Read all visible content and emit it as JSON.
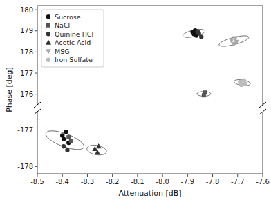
{
  "chart_data": [
    {
      "type": "scatter",
      "ylabel": "Phase [deg]",
      "xlim": [
        -8.5,
        -7.6
      ],
      "ylim": [
        175.5,
        180.2
      ],
      "yticks": [
        176,
        177,
        178,
        179,
        180
      ],
      "tick_labels": "y",
      "grid": false,
      "legend": "upper left",
      "series": [
        {
          "name": "Sucrose",
          "color": "#111111",
          "marker": "circle",
          "x": [
            -7.88,
            -7.875,
            -7.87,
            -7.865
          ],
          "values": [
            178.95,
            178.85,
            179.02,
            178.78
          ]
        },
        {
          "name": "NaCl",
          "color": "#555555",
          "marker": "square",
          "x": [
            -7.835,
            -7.83
          ],
          "values": [
            175.95,
            176.08
          ]
        },
        {
          "name": "Quinine HCl",
          "color": "#333333",
          "marker": "circle",
          "x": [
            -7.855,
            -7.845,
            -7.86
          ],
          "values": [
            178.88,
            178.72,
            178.98
          ]
        },
        {
          "name": "Acetic Acid",
          "color": "#333333",
          "marker": "triangle-up",
          "x": [],
          "values": []
        },
        {
          "name": "MSG",
          "color": "#aaaaaa",
          "marker": "triangle-down",
          "x": [
            -7.725,
            -7.715,
            -7.71,
            -7.705
          ],
          "values": [
            178.55,
            178.38,
            178.65,
            178.48
          ]
        },
        {
          "name": "Iron Sulfate",
          "color": "#bbbbbb",
          "marker": "circle",
          "x": [
            -7.69,
            -7.685,
            -7.675,
            -7.67
          ],
          "values": [
            176.58,
            176.45,
            176.65,
            176.5
          ]
        }
      ],
      "ellipses": [
        {
          "cx": -7.875,
          "cy": 178.88,
          "width": 0.072,
          "height": 0.38,
          "angle": -8
        },
        {
          "cx": -7.835,
          "cy": 176.02,
          "width": 0.055,
          "height": 0.22,
          "angle": 0
        },
        {
          "cx": -7.715,
          "cy": 178.52,
          "width": 0.082,
          "height": 0.5,
          "angle": -10
        },
        {
          "cx": -7.682,
          "cy": 176.55,
          "width": 0.06,
          "height": 0.28,
          "angle": 5
        }
      ]
    },
    {
      "type": "scatter",
      "xlabel": "Attenuation [dB]",
      "xlim": [
        -8.5,
        -7.6
      ],
      "ylim": [
        -178.2,
        -176.5
      ],
      "xticks": [
        -8.5,
        -8.4,
        -8.3,
        -8.2,
        -8.1,
        {
          "value": -8.0,
          "label": "-8.0"
        },
        -7.9,
        -7.8,
        -7.7,
        -7.6
      ],
      "yticks": [
        -178,
        -177
      ],
      "grid": false,
      "series": [
        {
          "color": "#111111",
          "marker": "circle",
          "x": [
            -8.4,
            -8.395,
            -8.385,
            -8.375
          ],
          "values": [
            -177.15,
            -177.25,
            -177.05,
            -177.35
          ]
        },
        {
          "color": "#555555",
          "marker": "square",
          "x": [
            -8.375,
            -8.365
          ],
          "values": [
            -177.2,
            -177.3
          ]
        },
        {
          "color": "#333333",
          "marker": "circle",
          "x": [
            -8.395,
            -8.38
          ],
          "values": [
            -177.45,
            -177.55
          ]
        },
        {
          "color": "#333333",
          "marker": "triangle-up",
          "x": [
            -8.27,
            -8.26,
            -8.255
          ],
          "values": [
            -177.52,
            -177.62,
            -177.45
          ]
        },
        {
          "color": "#aaaaaa",
          "marker": "triangle-down",
          "x": [],
          "values": []
        },
        {
          "color": "#bbbbbb",
          "marker": "circle",
          "x": [],
          "values": []
        }
      ],
      "ellipses": [
        {
          "cx": -8.39,
          "cy": -177.28,
          "width": 0.11,
          "height": 0.52,
          "angle": 12
        },
        {
          "cx": -8.263,
          "cy": -177.55,
          "width": 0.075,
          "height": 0.27,
          "angle": 5
        }
      ]
    }
  ]
}
